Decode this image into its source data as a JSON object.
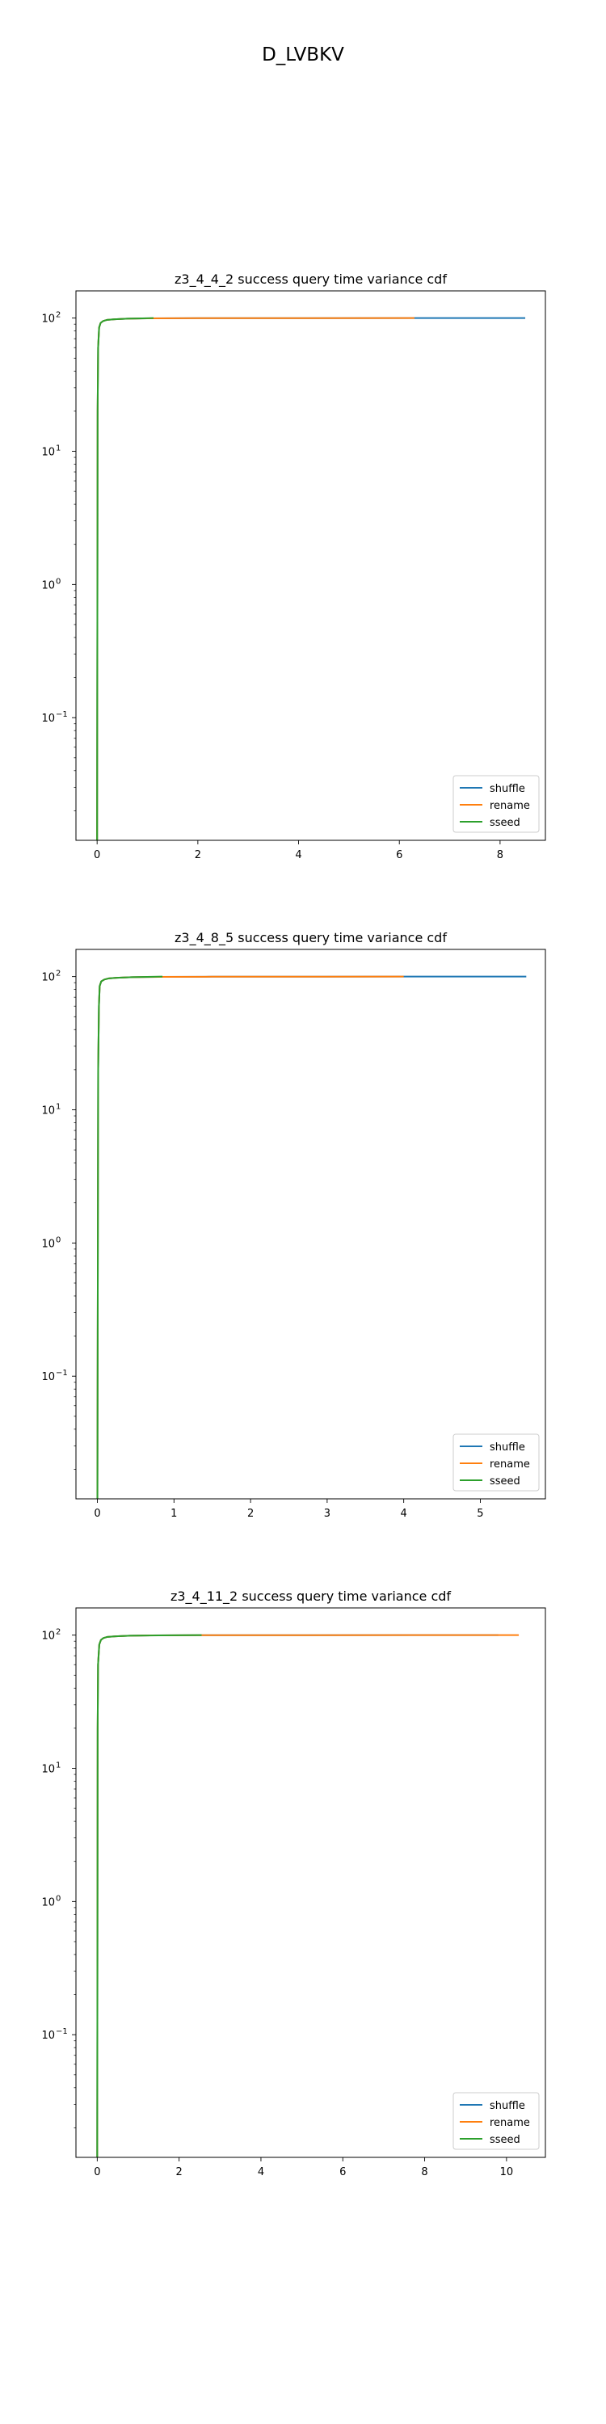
{
  "figure": {
    "title": "D_LVBKV"
  },
  "chart_data": [
    {
      "type": "line",
      "title": "z3_4_4_2 success query time variance cdf",
      "xlabel": "",
      "ylabel": "",
      "yscale": "log",
      "xlim": [
        -0.42,
        8.9
      ],
      "ylim": [
        0.012,
        160
      ],
      "xticks": [
        0,
        2,
        4,
        6,
        8
      ],
      "yticks": [
        0.1,
        1,
        10,
        100
      ],
      "ytick_labels": [
        "10",
        "10",
        "10",
        "10"
      ],
      "ytick_exponents": [
        "−1",
        "0",
        "1",
        "2"
      ],
      "grid": false,
      "legend": "lower right",
      "series": [
        {
          "name": "shuffle",
          "color": "#1f77b4",
          "x": [
            0,
            0.01,
            0.02,
            0.04,
            0.07,
            0.12,
            0.2,
            0.35,
            0.6,
            1.0,
            2.0,
            4.0,
            6.3,
            8.5
          ],
          "y": [
            0.012,
            20,
            60,
            85,
            92,
            95,
            97,
            98,
            99,
            99.5,
            99.8,
            99.9,
            99.97,
            100
          ]
        },
        {
          "name": "rename",
          "color": "#ff7f0e",
          "x": [
            0,
            0.01,
            0.02,
            0.04,
            0.07,
            0.12,
            0.2,
            0.35,
            0.6,
            1.0,
            2.0,
            4.0,
            6.3
          ],
          "y": [
            0.012,
            20,
            60,
            85,
            92,
            95,
            97,
            98,
            99,
            99.5,
            99.8,
            99.9,
            100
          ]
        },
        {
          "name": "sseed",
          "color": "#2ca02c",
          "x": [
            0,
            0.01,
            0.02,
            0.04,
            0.07,
            0.12,
            0.2,
            0.35,
            0.6,
            0.9,
            1.12
          ],
          "y": [
            0.012,
            20,
            60,
            85,
            92,
            95,
            97,
            98,
            99,
            99.6,
            100
          ]
        }
      ]
    },
    {
      "type": "line",
      "title": "z3_4_8_5 success query time variance cdf",
      "xlabel": "",
      "ylabel": "",
      "yscale": "log",
      "xlim": [
        -0.28,
        5.85
      ],
      "ylim": [
        0.012,
        160
      ],
      "xticks": [
        0,
        1,
        2,
        3,
        4,
        5
      ],
      "yticks": [
        0.1,
        1,
        10,
        100
      ],
      "ytick_labels": [
        "10",
        "10",
        "10",
        "10"
      ],
      "ytick_exponents": [
        "−1",
        "0",
        "1",
        "2"
      ],
      "grid": false,
      "legend": "lower right",
      "series": [
        {
          "name": "shuffle",
          "color": "#1f77b4",
          "x": [
            0,
            0.01,
            0.02,
            0.03,
            0.05,
            0.09,
            0.15,
            0.25,
            0.45,
            0.8,
            1.5,
            3.0,
            4.0,
            5.6
          ],
          "y": [
            0.012,
            20,
            60,
            85,
            92,
            95,
            97,
            98,
            99,
            99.5,
            99.8,
            99.9,
            99.97,
            100
          ]
        },
        {
          "name": "rename",
          "color": "#ff7f0e",
          "x": [
            0,
            0.01,
            0.02,
            0.03,
            0.05,
            0.09,
            0.15,
            0.25,
            0.45,
            0.8,
            1.5,
            3.0,
            4.0
          ],
          "y": [
            0.012,
            20,
            60,
            85,
            92,
            95,
            97,
            98,
            99,
            99.5,
            99.8,
            99.9,
            100
          ]
        },
        {
          "name": "sseed",
          "color": "#2ca02c",
          "x": [
            0,
            0.01,
            0.02,
            0.03,
            0.05,
            0.09,
            0.15,
            0.25,
            0.45,
            0.65,
            0.85
          ],
          "y": [
            0.012,
            20,
            60,
            85,
            92,
            95,
            97,
            98,
            99,
            99.6,
            100
          ]
        }
      ]
    },
    {
      "type": "line",
      "title": "z3_4_11_2 success query time variance cdf",
      "xlabel": "",
      "ylabel": "",
      "yscale": "log",
      "xlim": [
        -0.52,
        10.95
      ],
      "ylim": [
        0.012,
        160
      ],
      "xticks": [
        0,
        2,
        4,
        6,
        8,
        10
      ],
      "yticks": [
        0.1,
        1,
        10,
        100
      ],
      "ytick_labels": [
        "10",
        "10",
        "10",
        "10"
      ],
      "ytick_exponents": [
        "−1",
        "0",
        "1",
        "2"
      ],
      "grid": false,
      "legend": "lower right",
      "series": [
        {
          "name": "shuffle",
          "color": "#1f77b4",
          "x": [
            0,
            0.01,
            0.02,
            0.05,
            0.09,
            0.15,
            0.25,
            0.45,
            0.8,
            1.3,
            2.5,
            5.0,
            8.0,
            9.8
          ],
          "y": [
            0.012,
            20,
            60,
            85,
            92,
            95,
            97,
            98,
            99,
            99.5,
            99.8,
            99.9,
            99.97,
            100
          ]
        },
        {
          "name": "rename",
          "color": "#ff7f0e",
          "x": [
            0,
            0.01,
            0.02,
            0.05,
            0.09,
            0.15,
            0.25,
            0.45,
            0.8,
            1.3,
            2.5,
            5.0,
            8.0,
            10.3
          ],
          "y": [
            0.012,
            20,
            60,
            85,
            92,
            95,
            97,
            98,
            99,
            99.5,
            99.8,
            99.9,
            99.97,
            100
          ]
        },
        {
          "name": "sseed",
          "color": "#2ca02c",
          "x": [
            0,
            0.01,
            0.02,
            0.05,
            0.09,
            0.15,
            0.25,
            0.45,
            0.8,
            1.5,
            2.55
          ],
          "y": [
            0.012,
            20,
            60,
            85,
            92,
            95,
            97,
            98,
            99,
            99.6,
            100
          ]
        }
      ]
    }
  ]
}
